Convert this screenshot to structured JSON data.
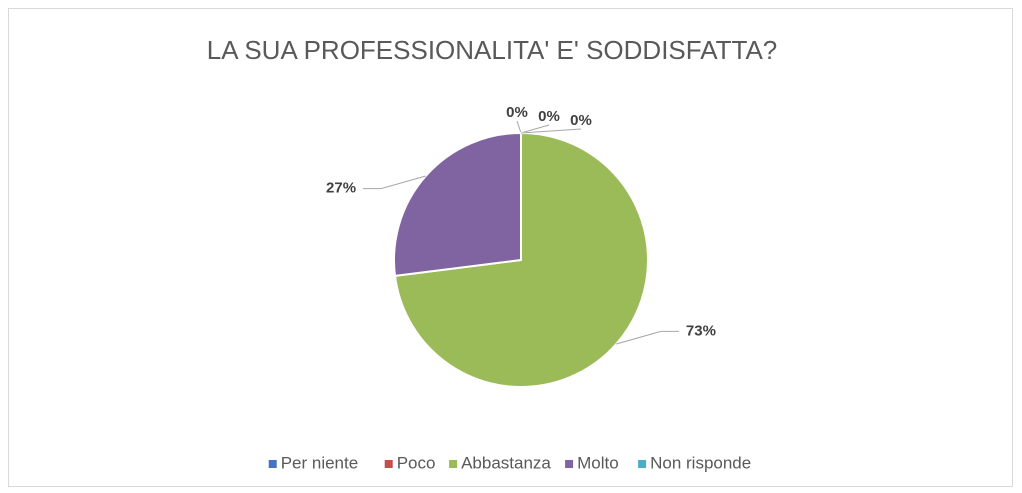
{
  "chart_data": {
    "type": "pie",
    "title": "LA SUA PROFESSIONALITA' E' SODDISFATTA?",
    "categories": [
      "Per niente",
      "Poco",
      "Abbastanza",
      "Molto",
      "Non risponde"
    ],
    "values": [
      0,
      0,
      73,
      27,
      0
    ],
    "value_labels": [
      "0%",
      "0%",
      "73%",
      "27%",
      "0%"
    ],
    "colors": [
      "#4472c4",
      "#c0504d",
      "#9bbb59",
      "#8064a2",
      "#4bacc6"
    ],
    "legend": "bottom"
  }
}
